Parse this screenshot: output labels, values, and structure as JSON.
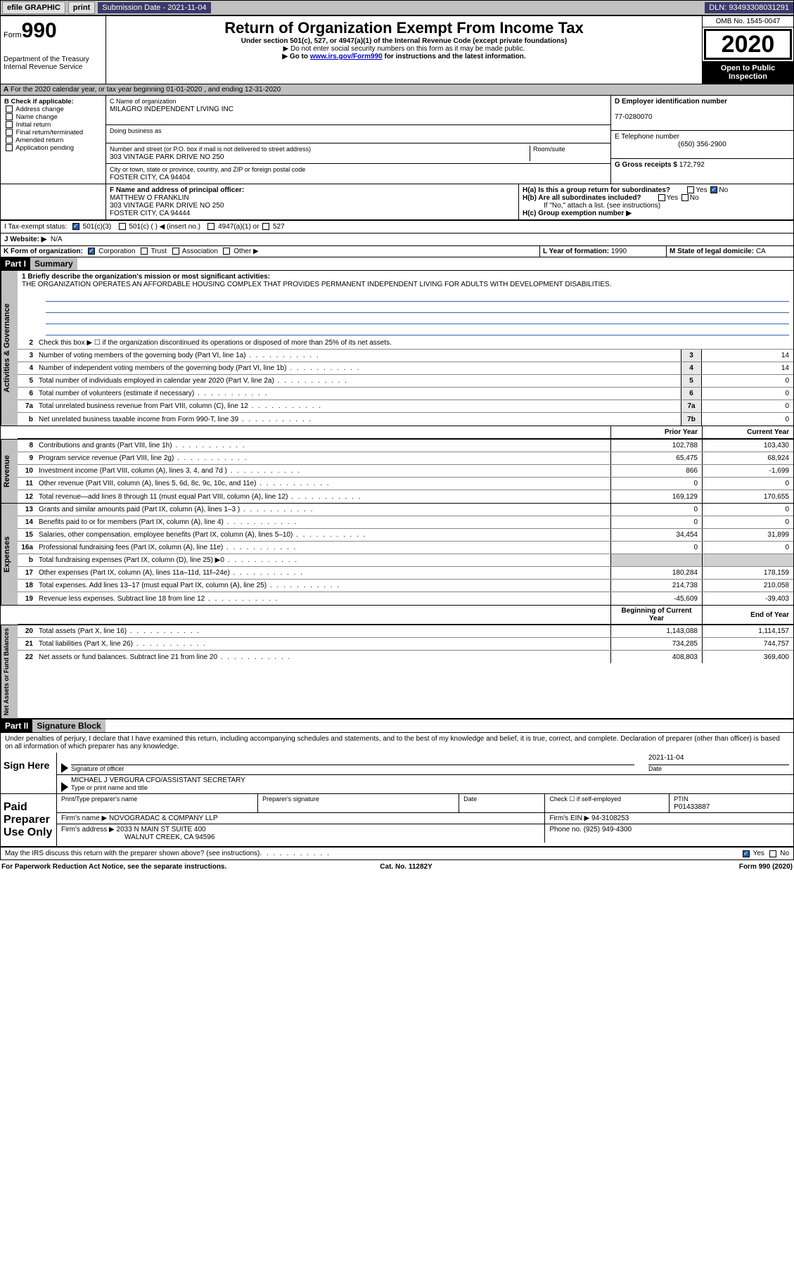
{
  "colors": {
    "topbar_bg": "#c0c0c0",
    "topbar_field_bg": "#3a3a6a",
    "section_bg": "#000000",
    "sidetab_bg": "#c0c0c0",
    "rule_color": "#3a5fc0",
    "link": "#0000cc"
  },
  "topbar": {
    "efile": "efile GRAPHIC",
    "print": "print",
    "sub_label": "Submission Date - ",
    "sub_date": "2021-11-04",
    "dln_label": "DLN: ",
    "dln": "93493308031291"
  },
  "header": {
    "form_label": "Form",
    "form_num": "990",
    "dept": "Department of the Treasury\nInternal Revenue Service",
    "title": "Return of Organization Exempt From Income Tax",
    "sub1": "Under section 501(c), 527, or 4947(a)(1) of the Internal Revenue Code (except private foundations)",
    "sub2": "▶ Do not enter social security numbers on this form as it may be made public.",
    "sub3_pre": "▶ Go to ",
    "sub3_link": "www.irs.gov/Form990",
    "sub3_post": " for instructions and the latest information.",
    "omb": "OMB No. 1545-0047",
    "year": "2020",
    "inspect": "Open to Public Inspection"
  },
  "lineA": "For the 2020 calendar year, or tax year beginning 01-01-2020   , and ending 12-31-2020",
  "blockB": {
    "label": "B Check if applicable:",
    "opts": [
      "Address change",
      "Name change",
      "Initial return",
      "Final return/terminated",
      "Amended return",
      "Application pending"
    ]
  },
  "blockC": {
    "name_label": "C Name of organization",
    "name": "MILAGRO INDEPENDENT LIVING INC",
    "dba_label": "Doing business as",
    "addr_label": "Number and street (or P.O. box if mail is not delivered to street address)",
    "room_label": "Room/suite",
    "addr": "303 VINTAGE PARK DRIVE NO 250",
    "city_label": "City or town, state or province, country, and ZIP or foreign postal code",
    "city": "FOSTER CITY, CA  94404"
  },
  "blockD": {
    "label": "D Employer identification number",
    "value": "77-0280070"
  },
  "blockE": {
    "label": "E Telephone number",
    "value": "(650) 356-2900"
  },
  "blockG": {
    "label": "G Gross receipts $",
    "value": "172,792"
  },
  "blockF": {
    "label": "F  Name and address of principal officer:",
    "name": "MATTHEW O FRANKLIN",
    "addr1": "303 VINTAGE PARK DRIVE NO 250",
    "addr2": "FOSTER CITY, CA  94444"
  },
  "blockH": {
    "a": "H(a)  Is this a group return for subordinates?",
    "a_no": true,
    "b": "H(b)  Are all subordinates included?",
    "b_note": "If \"No,\" attach a list. (see instructions)",
    "c": "H(c)  Group exemption number ▶"
  },
  "lineI": {
    "label": "I    Tax-exempt status:",
    "o1": "501(c)(3)",
    "o2": "501(c) (  ) ◀ (insert no.)",
    "o3": "4947(a)(1) or",
    "o4": "527"
  },
  "lineJ": {
    "label": "J    Website: ▶",
    "value": "N/A"
  },
  "lineK": {
    "label": "K Form of organization:",
    "opts": [
      "Corporation",
      "Trust",
      "Association",
      "Other ▶"
    ],
    "corp_checked": true
  },
  "lineL": {
    "label": "L Year of formation:",
    "value": "1990"
  },
  "lineM": {
    "label": "M State of legal domicile:",
    "value": "CA"
  },
  "part1": {
    "num": "Part I",
    "title": "Summary"
  },
  "summary_q1": "1  Briefly describe the organization's mission or most significant activities:",
  "mission": "THE ORGANIZATION OPERATES AN AFFORDABLE HOUSING COMPLEX THAT PROVIDES PERMANENT INDEPENDENT LIVING FOR ADULTS WITH DEVELOPMENT DISABILITIES.",
  "gov_lines": [
    {
      "n": "2",
      "d": "Check this box ▶ ☐  if the organization discontinued its operations or disposed of more than 25% of its net assets."
    },
    {
      "n": "3",
      "d": "Number of voting members of the governing body (Part VI, line 1a)",
      "box": "3",
      "v": "14"
    },
    {
      "n": "4",
      "d": "Number of independent voting members of the governing body (Part VI, line 1b)",
      "box": "4",
      "v": "14"
    },
    {
      "n": "5",
      "d": "Total number of individuals employed in calendar year 2020 (Part V, line 2a)",
      "box": "5",
      "v": "0"
    },
    {
      "n": "6",
      "d": "Total number of volunteers (estimate if necessary)",
      "box": "6",
      "v": "0"
    },
    {
      "n": "7a",
      "d": "Total unrelated business revenue from Part VIII, column (C), line 12",
      "box": "7a",
      "v": "0"
    },
    {
      "n": "b",
      "d": "Net unrelated business taxable income from Form 990-T, line 39",
      "box": "7b",
      "v": "0"
    }
  ],
  "col_hdr": {
    "prior": "Prior Year",
    "current": "Current Year"
  },
  "rev_lines": [
    {
      "n": "8",
      "d": "Contributions and grants (Part VIII, line 1h)",
      "p": "102,788",
      "c": "103,430"
    },
    {
      "n": "9",
      "d": "Program service revenue (Part VIII, line 2g)",
      "p": "65,475",
      "c": "68,924"
    },
    {
      "n": "10",
      "d": "Investment income (Part VIII, column (A), lines 3, 4, and 7d )",
      "p": "866",
      "c": "-1,699"
    },
    {
      "n": "11",
      "d": "Other revenue (Part VIII, column (A), lines 5, 6d, 8c, 9c, 10c, and 11e)",
      "p": "0",
      "c": "0"
    },
    {
      "n": "12",
      "d": "Total revenue—add lines 8 through 11 (must equal Part VIII, column (A), line 12)",
      "p": "169,129",
      "c": "170,655"
    }
  ],
  "exp_lines": [
    {
      "n": "13",
      "d": "Grants and similar amounts paid (Part IX, column (A), lines 1–3 )",
      "p": "0",
      "c": "0"
    },
    {
      "n": "14",
      "d": "Benefits paid to or for members (Part IX, column (A), line 4)",
      "p": "0",
      "c": "0"
    },
    {
      "n": "15",
      "d": "Salaries, other compensation, employee benefits (Part IX, column (A), lines 5–10)",
      "p": "34,454",
      "c": "31,899"
    },
    {
      "n": "16a",
      "d": "Professional fundraising fees (Part IX, column (A), line 11e)",
      "p": "0",
      "c": "0"
    },
    {
      "n": "b",
      "d": "Total fundraising expenses (Part IX, column (D), line 25) ▶0",
      "p": "",
      "c": "",
      "shade": true
    },
    {
      "n": "17",
      "d": "Other expenses (Part IX, column (A), lines 11a–11d, 11f–24e)",
      "p": "180,284",
      "c": "178,159"
    },
    {
      "n": "18",
      "d": "Total expenses. Add lines 13–17 (must equal Part IX, column (A), line 25)",
      "p": "214,738",
      "c": "210,058"
    },
    {
      "n": "19",
      "d": "Revenue less expenses. Subtract line 18 from line 12",
      "p": "-45,609",
      "c": "-39,403"
    }
  ],
  "net_hdr": {
    "begin": "Beginning of Current Year",
    "end": "End of Year"
  },
  "net_lines": [
    {
      "n": "20",
      "d": "Total assets (Part X, line 16)",
      "p": "1,143,088",
      "c": "1,114,157"
    },
    {
      "n": "21",
      "d": "Total liabilities (Part X, line 26)",
      "p": "734,285",
      "c": "744,757"
    },
    {
      "n": "22",
      "d": "Net assets or fund balances. Subtract line 21 from line 20",
      "p": "408,803",
      "c": "369,400"
    }
  ],
  "part2": {
    "num": "Part II",
    "title": "Signature Block"
  },
  "penalties": "Under penalties of perjury, I declare that I have examined this return, including accompanying schedules and statements, and to the best of my knowledge and belief, it is true, correct, and complete. Declaration of preparer (other than officer) is based on all information of which preparer has any knowledge.",
  "sign": {
    "here": "Sign Here",
    "sig_label": "Signature of officer",
    "date_label": "Date",
    "date": "2021-11-04",
    "name": "MICHAEL J VERGURA  CFO/ASSISTANT SECRETARY",
    "name_label": "Type or print name and title"
  },
  "paid": {
    "title": "Paid Preparer Use Only",
    "h1": "Print/Type preparer's name",
    "h2": "Preparer's signature",
    "h3": "Date",
    "h4": "Check ☐ if self-employed",
    "h5_label": "PTIN",
    "h5": "P01433887",
    "firm_label": "Firm's name    ▶",
    "firm": "NOVOGRADAC & COMPANY LLP",
    "ein_label": "Firm's EIN ▶",
    "ein": "94-3108253",
    "addr_label": "Firm's address ▶",
    "addr1": "2033 N MAIN ST SUITE 400",
    "addr2": "WALNUT CREEK, CA  94596",
    "phone_label": "Phone no.",
    "phone": "(925) 949-4300"
  },
  "discuss": "May the IRS discuss this return with the preparer shown above? (see instructions)",
  "discuss_yes": true,
  "footer": {
    "l": "For Paperwork Reduction Act Notice, see the separate instructions.",
    "m": "Cat. No. 11282Y",
    "r": "Form 990 (2020)"
  }
}
